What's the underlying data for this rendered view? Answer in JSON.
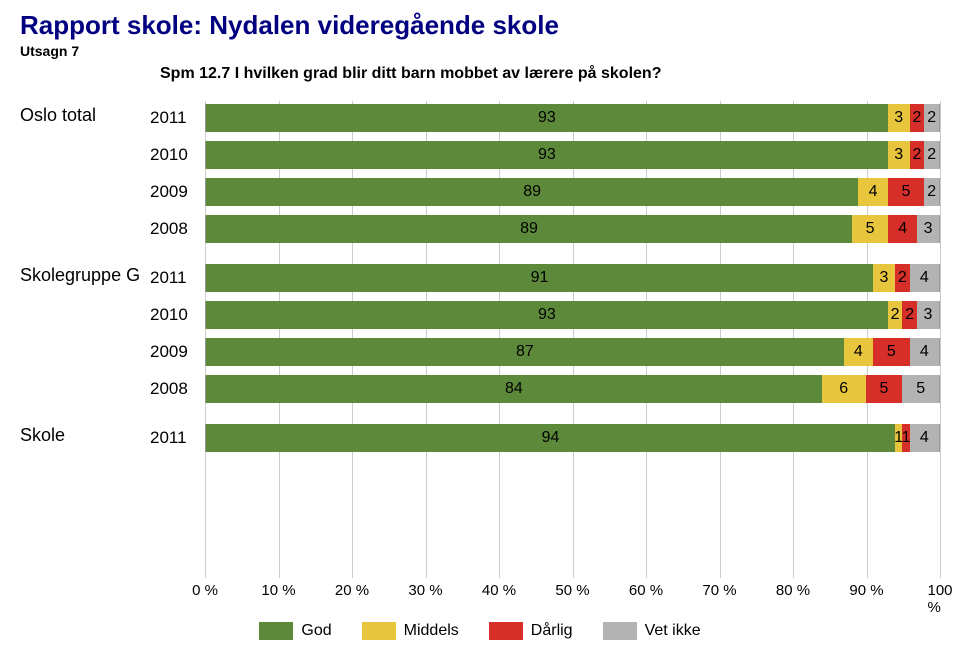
{
  "header": {
    "title_prefix": "Rapport skole:  ",
    "title_school": "Nydalen videregående skole",
    "subtitle": "Utsagn 7",
    "question": "Spm 12.7   I hvilken grad blir ditt barn mobbet av lærere på skolen?"
  },
  "chart": {
    "type": "stacked-bar-horizontal",
    "xlim": [
      0,
      100
    ],
    "xtick_step": 10,
    "xtick_suffix": " %",
    "background_color": "#ffffff",
    "grid_color": "#cccccc",
    "label_fontsize": 17,
    "group_label_fontsize": 18,
    "tick_fontsize": 15,
    "categories": [
      {
        "key": "god",
        "label": "God",
        "color": "#5c8a3a"
      },
      {
        "key": "middels",
        "label": "Middels",
        "color": "#e7c53c"
      },
      {
        "key": "darlig",
        "label": "Dårlig",
        "color": "#d62f2a"
      },
      {
        "key": "vetikke",
        "label": "Vet ikke",
        "color": "#b3b3b3"
      }
    ],
    "groups": [
      {
        "label": "Oslo total",
        "rows": [
          {
            "year": "2011",
            "values": [
              93,
              3,
              2,
              2
            ]
          },
          {
            "year": "2010",
            "values": [
              93,
              3,
              2,
              2
            ]
          },
          {
            "year": "2009",
            "values": [
              89,
              4,
              5,
              2
            ]
          },
          {
            "year": "2008",
            "values": [
              89,
              5,
              4,
              3
            ]
          }
        ]
      },
      {
        "label": "Skolegruppe G",
        "rows": [
          {
            "year": "2011",
            "values": [
              91,
              3,
              2,
              4
            ]
          },
          {
            "year": "2010",
            "values": [
              93,
              2,
              2,
              3
            ]
          },
          {
            "year": "2009",
            "values": [
              87,
              4,
              5,
              4
            ]
          },
          {
            "year": "2008",
            "values": [
              84,
              6,
              5,
              5
            ]
          }
        ]
      },
      {
        "label": "Skole",
        "rows": [
          {
            "year": "2011",
            "values": [
              94,
              1,
              1,
              4
            ]
          }
        ],
        "trailing_space": true
      }
    ]
  }
}
